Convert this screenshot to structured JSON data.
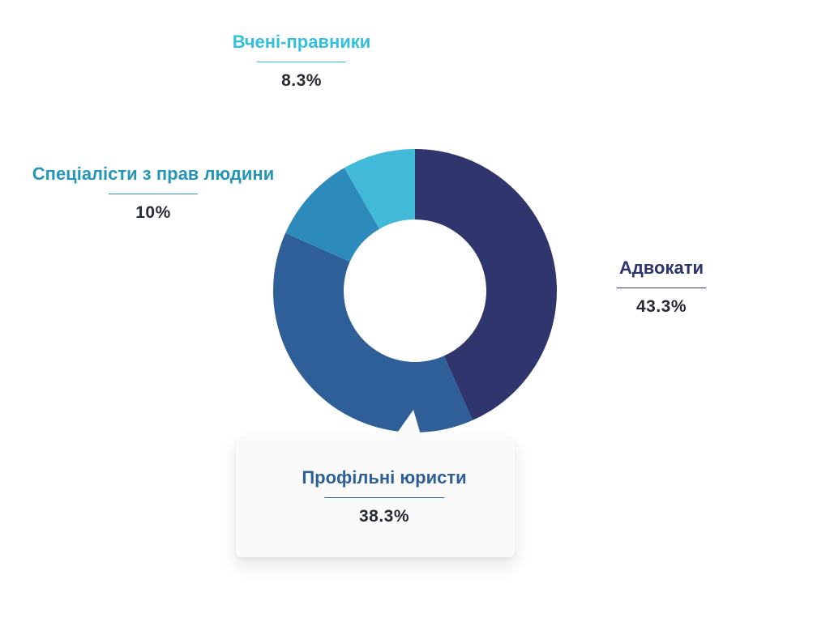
{
  "chart_data": {
    "type": "pie",
    "variant": "donut",
    "categories": [
      "Адвокати",
      "Профільні юристи",
      "Спеціалісти з прав людини",
      "Вчені-правники"
    ],
    "values": [
      43.3,
      38.3,
      10,
      8.3
    ],
    "value_labels": [
      "43.3%",
      "38.3%",
      "10%",
      "8.3%"
    ],
    "colors": [
      "#31356e",
      "#2e5f98",
      "#2c8bbb",
      "#42b9d9"
    ],
    "label_colors": [
      "#2d3470",
      "#2e5f98",
      "#2596b6",
      "#33c0dd"
    ],
    "legend": "callout-labels",
    "highlighted": "Профільні юристи"
  }
}
